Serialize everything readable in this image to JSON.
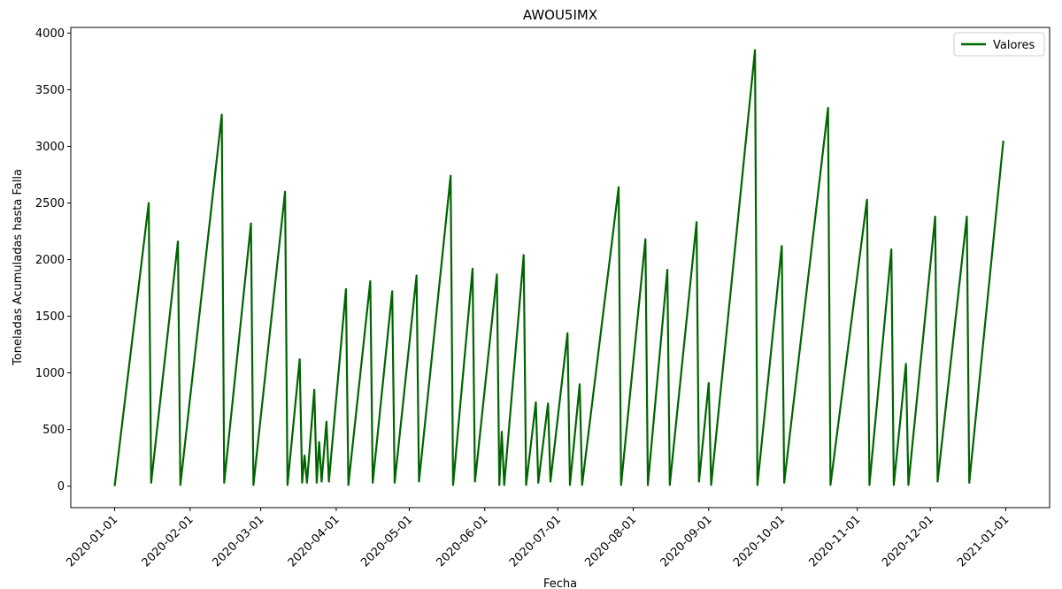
{
  "chart_data": {
    "type": "line",
    "title": "AWOU5IMX",
    "xlabel": "Fecha",
    "ylabel": "Toneladas Acumuladas hasta Falla",
    "x": [
      "2020-01-01",
      "2020-01-15",
      "2020-01-16",
      "2020-01-27",
      "2020-01-28",
      "2020-02-14",
      "2020-02-15",
      "2020-02-26",
      "2020-02-27",
      "2020-03-11",
      "2020-03-12",
      "2020-03-17",
      "2020-03-18",
      "2020-03-19",
      "2020-03-20",
      "2020-03-23",
      "2020-03-24",
      "2020-03-25",
      "2020-03-26",
      "2020-03-28",
      "2020-03-29",
      "2020-04-05",
      "2020-04-06",
      "2020-04-15",
      "2020-04-16",
      "2020-04-24",
      "2020-04-25",
      "2020-05-04",
      "2020-05-05",
      "2020-05-18",
      "2020-05-19",
      "2020-05-27",
      "2020-05-28",
      "2020-06-06",
      "2020-06-07",
      "2020-06-08",
      "2020-06-09",
      "2020-06-17",
      "2020-06-18",
      "2020-06-22",
      "2020-06-23",
      "2020-06-27",
      "2020-06-28",
      "2020-07-05",
      "2020-07-06",
      "2020-07-10",
      "2020-07-11",
      "2020-07-26",
      "2020-07-27",
      "2020-08-06",
      "2020-08-07",
      "2020-08-15",
      "2020-08-16",
      "2020-08-27",
      "2020-08-28",
      "2020-09-01",
      "2020-09-02",
      "2020-09-20",
      "2020-09-21",
      "2020-10-01",
      "2020-10-02",
      "2020-10-20",
      "2020-10-21",
      "2020-11-05",
      "2020-11-06",
      "2020-11-15",
      "2020-11-16",
      "2020-11-21",
      "2020-11-22",
      "2020-12-03",
      "2020-12-04",
      "2020-12-16",
      "2020-12-17",
      "2020-12-31"
    ],
    "series": [
      {
        "name": "Valores",
        "color": "#006400",
        "values": [
          0,
          2500,
          30,
          2160,
          10,
          3280,
          30,
          2320,
          10,
          2600,
          10,
          1120,
          30,
          270,
          30,
          850,
          30,
          390,
          40,
          570,
          40,
          1740,
          10,
          1810,
          30,
          1720,
          30,
          1860,
          40,
          2740,
          10,
          1920,
          40,
          1870,
          10,
          480,
          10,
          2040,
          10,
          740,
          30,
          730,
          40,
          1350,
          10,
          900,
          10,
          2640,
          10,
          2180,
          10,
          1910,
          10,
          2330,
          40,
          910,
          10,
          3850,
          10,
          2120,
          30,
          3340,
          10,
          2530,
          10,
          2090,
          10,
          1080,
          10,
          2380,
          40,
          2380,
          30,
          3050
        ]
      }
    ],
    "xlim": [
      "2019-12-14",
      "2021-01-19"
    ],
    "xticks": [
      "2020-01-01",
      "2020-02-01",
      "2020-03-01",
      "2020-04-01",
      "2020-05-01",
      "2020-06-01",
      "2020-07-01",
      "2020-08-01",
      "2020-09-01",
      "2020-10-01",
      "2020-11-01",
      "2020-12-01",
      "2021-01-01"
    ],
    "ylim": [
      -190,
      4050
    ],
    "yticks": [
      0,
      500,
      1000,
      1500,
      2000,
      2500,
      3000,
      3500,
      4000
    ],
    "legend": "upper right",
    "grid": false
  }
}
